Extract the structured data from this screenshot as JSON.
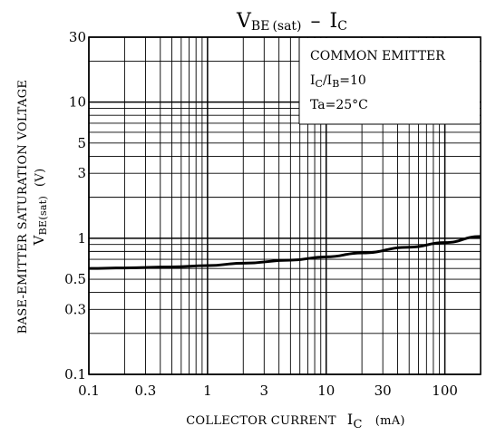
{
  "chart_data": {
    "type": "line",
    "title": {
      "main": "V",
      "main_sub": "BE",
      "paren": "(sat)",
      "dash": "–",
      "right": "I",
      "right_sub": "C"
    },
    "xlabel": {
      "text": "COLLECTOR CURRENT",
      "symbol": "I",
      "symbol_sub": "C",
      "unit": "(mA)"
    },
    "ylabel": {
      "line1": "BASE-EMITTER SATURATION VOLTAGE",
      "symbol": "V",
      "symbol_sub": "BE(sat)",
      "unit": "(V)"
    },
    "x_scale": "log",
    "y_scale": "log",
    "xlim": [
      0.1,
      200
    ],
    "ylim": [
      0.1,
      30
    ],
    "x_ticks": [
      "0.1",
      "0.3",
      "1",
      "3",
      "10",
      "30",
      "100"
    ],
    "y_ticks": [
      "30",
      "10",
      "5",
      "3",
      "1",
      "0.5",
      "0.3",
      "0.1"
    ],
    "grid": true,
    "conditions": {
      "line1": "COMMON EMITTER",
      "line2_a": "I",
      "line2_a_sub": "C",
      "line2_b": "/I",
      "line2_b_sub": "B",
      "line2_c": "=10",
      "line3": "Ta=25°C"
    },
    "series": [
      {
        "x": [
          0.1,
          0.2,
          0.5,
          1,
          2,
          5,
          10,
          20,
          50,
          100,
          200
        ],
        "y": [
          0.6,
          0.605,
          0.615,
          0.63,
          0.655,
          0.69,
          0.73,
          0.78,
          0.86,
          0.93,
          1.03
        ]
      }
    ]
  }
}
